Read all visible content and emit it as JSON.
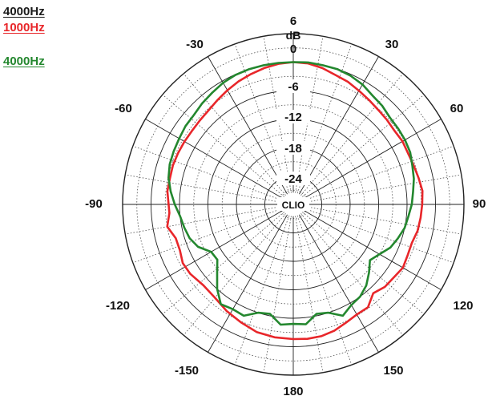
{
  "legend": {
    "items": [
      {
        "label": "4000Hz",
        "color": "#1a1a1a"
      },
      {
        "label": "1000Hz",
        "color": "#e8262a"
      },
      {
        "label": "4000Hz",
        "color": "#23872e"
      }
    ]
  },
  "chart_data": {
    "type": "polar",
    "radial_unit": "dB",
    "radial_ticks": [
      6,
      0,
      -6,
      -12,
      -18,
      -24
    ],
    "radial_range": [
      -30,
      6
    ],
    "angle_ticks": [
      0,
      30,
      60,
      90,
      120,
      150,
      180,
      -150,
      -120,
      -90,
      -60,
      -30
    ],
    "center_label": "CLIO",
    "grid": true,
    "series": [
      {
        "name": "1000Hz",
        "color": "#e8262a",
        "points": [
          {
            "angle": -180,
            "db": -1.6
          },
          {
            "angle": -172,
            "db": -1.7
          },
          {
            "angle": -164,
            "db": -2.0
          },
          {
            "angle": -156,
            "db": -2.8
          },
          {
            "angle": -148,
            "db": -3.5
          },
          {
            "angle": -140,
            "db": -4.3
          },
          {
            "angle": -132,
            "db": -4.5
          },
          {
            "angle": -124,
            "db": -3.8
          },
          {
            "angle": -118,
            "db": -3.6
          },
          {
            "angle": -112,
            "db": -4.2
          },
          {
            "angle": -106,
            "db": -4.2
          },
          {
            "angle": -100,
            "db": -3.0
          },
          {
            "angle": -94,
            "db": -3.8
          },
          {
            "angle": -90,
            "db": -3.7
          },
          {
            "angle": -84,
            "db": -3.3
          },
          {
            "angle": -78,
            "db": -3.4
          },
          {
            "angle": -72,
            "db": -3.3
          },
          {
            "angle": -66,
            "db": -3.4
          },
          {
            "angle": -60,
            "db": -3.5
          },
          {
            "angle": -54,
            "db": -3.6
          },
          {
            "angle": -48,
            "db": -3.5
          },
          {
            "angle": -42,
            "db": -3.3
          },
          {
            "angle": -36,
            "db": -2.8
          },
          {
            "angle": -30,
            "db": -2.2
          },
          {
            "angle": -24,
            "db": -1.6
          },
          {
            "angle": -18,
            "db": -1.1
          },
          {
            "angle": -12,
            "db": -0.6
          },
          {
            "angle": -6,
            "db": -0.2
          },
          {
            "angle": 0,
            "db": 0.0
          },
          {
            "angle": 6,
            "db": -0.1
          },
          {
            "angle": 12,
            "db": -0.6
          },
          {
            "angle": 18,
            "db": -1.3
          },
          {
            "angle": 24,
            "db": -1.7
          },
          {
            "angle": 30,
            "db": -2.3
          },
          {
            "angle": 36,
            "db": -2.8
          },
          {
            "angle": 42,
            "db": -3.2
          },
          {
            "angle": 48,
            "db": -3.4
          },
          {
            "angle": 54,
            "db": -3.6
          },
          {
            "angle": 60,
            "db": -3.4
          },
          {
            "angle": 66,
            "db": -3.5
          },
          {
            "angle": 72,
            "db": -3.3
          },
          {
            "angle": 78,
            "db": -3.0
          },
          {
            "angle": 84,
            "db": -2.6
          },
          {
            "angle": 90,
            "db": -2.8
          },
          {
            "angle": 96,
            "db": -3.0
          },
          {
            "angle": 102,
            "db": -3.2
          },
          {
            "angle": 108,
            "db": -3.7
          },
          {
            "angle": 114,
            "db": -3.6
          },
          {
            "angle": 120,
            "db": -3.3
          },
          {
            "angle": 126,
            "db": -3.8
          },
          {
            "angle": 132,
            "db": -4.0
          },
          {
            "angle": 138,
            "db": -4.8
          },
          {
            "angle": 144,
            "db": -3.2
          },
          {
            "angle": 150,
            "db": -3.2
          },
          {
            "angle": 156,
            "db": -2.7
          },
          {
            "angle": 162,
            "db": -2.0
          },
          {
            "angle": 168,
            "db": -1.6
          },
          {
            "angle": 174,
            "db": -1.5
          },
          {
            "angle": 180,
            "db": -1.6
          }
        ]
      },
      {
        "name": "4000Hz",
        "color": "#23872e",
        "points": [
          {
            "angle": -180,
            "db": -4.8
          },
          {
            "angle": -174,
            "db": -4.5
          },
          {
            "angle": -168,
            "db": -6.4
          },
          {
            "angle": -162,
            "db": -6.0
          },
          {
            "angle": -156,
            "db": -4.3
          },
          {
            "angle": -150,
            "db": -4.5
          },
          {
            "angle": -144,
            "db": -4.0
          },
          {
            "angle": -138,
            "db": -6.0
          },
          {
            "angle": -132,
            "db": -8.4
          },
          {
            "angle": -126,
            "db": -10.2
          },
          {
            "angle": -120,
            "db": -10.0
          },
          {
            "angle": -114,
            "db": -8.0
          },
          {
            "angle": -108,
            "db": -7.0
          },
          {
            "angle": -102,
            "db": -6.5
          },
          {
            "angle": -96,
            "db": -6.0
          },
          {
            "angle": -90,
            "db": -5.0
          },
          {
            "angle": -84,
            "db": -4.0
          },
          {
            "angle": -78,
            "db": -3.1
          },
          {
            "angle": -72,
            "db": -2.6
          },
          {
            "angle": -66,
            "db": -2.4
          },
          {
            "angle": -60,
            "db": -2.2
          },
          {
            "angle": -54,
            "db": -1.9
          },
          {
            "angle": -48,
            "db": -1.8
          },
          {
            "angle": -42,
            "db": -1.3
          },
          {
            "angle": -36,
            "db": -0.9
          },
          {
            "angle": -30,
            "db": -0.4
          },
          {
            "angle": -24,
            "db": -0.1
          },
          {
            "angle": -18,
            "db": 0.0
          },
          {
            "angle": -12,
            "db": 0.0
          },
          {
            "angle": -6,
            "db": 0.0
          },
          {
            "angle": 0,
            "db": 0.0
          },
          {
            "angle": 6,
            "db": 0.1
          },
          {
            "angle": 12,
            "db": 0.0
          },
          {
            "angle": 18,
            "db": 0.0
          },
          {
            "angle": 24,
            "db": -0.3
          },
          {
            "angle": 30,
            "db": -0.8
          },
          {
            "angle": 36,
            "db": -1.6
          },
          {
            "angle": 42,
            "db": -2.0
          },
          {
            "angle": 48,
            "db": -2.6
          },
          {
            "angle": 54,
            "db": -2.7
          },
          {
            "angle": 60,
            "db": -2.8
          },
          {
            "angle": 66,
            "db": -3.0
          },
          {
            "angle": 72,
            "db": -3.6
          },
          {
            "angle": 78,
            "db": -4.0
          },
          {
            "angle": 84,
            "db": -4.6
          },
          {
            "angle": 90,
            "db": -5.0
          },
          {
            "angle": 96,
            "db": -5.6
          },
          {
            "angle": 102,
            "db": -6.0
          },
          {
            "angle": 108,
            "db": -6.8
          },
          {
            "angle": 114,
            "db": -7.6
          },
          {
            "angle": 120,
            "db": -9.0
          },
          {
            "angle": 126,
            "db": -10.0
          },
          {
            "angle": 132,
            "db": -8.5
          },
          {
            "angle": 138,
            "db": -7.0
          },
          {
            "angle": 144,
            "db": -6.0
          },
          {
            "angle": 150,
            "db": -5.5
          },
          {
            "angle": 156,
            "db": -4.3
          },
          {
            "angle": 162,
            "db": -6.0
          },
          {
            "angle": 168,
            "db": -6.4
          },
          {
            "angle": 174,
            "db": -4.6
          },
          {
            "angle": 180,
            "db": -4.8
          }
        ]
      }
    ]
  }
}
